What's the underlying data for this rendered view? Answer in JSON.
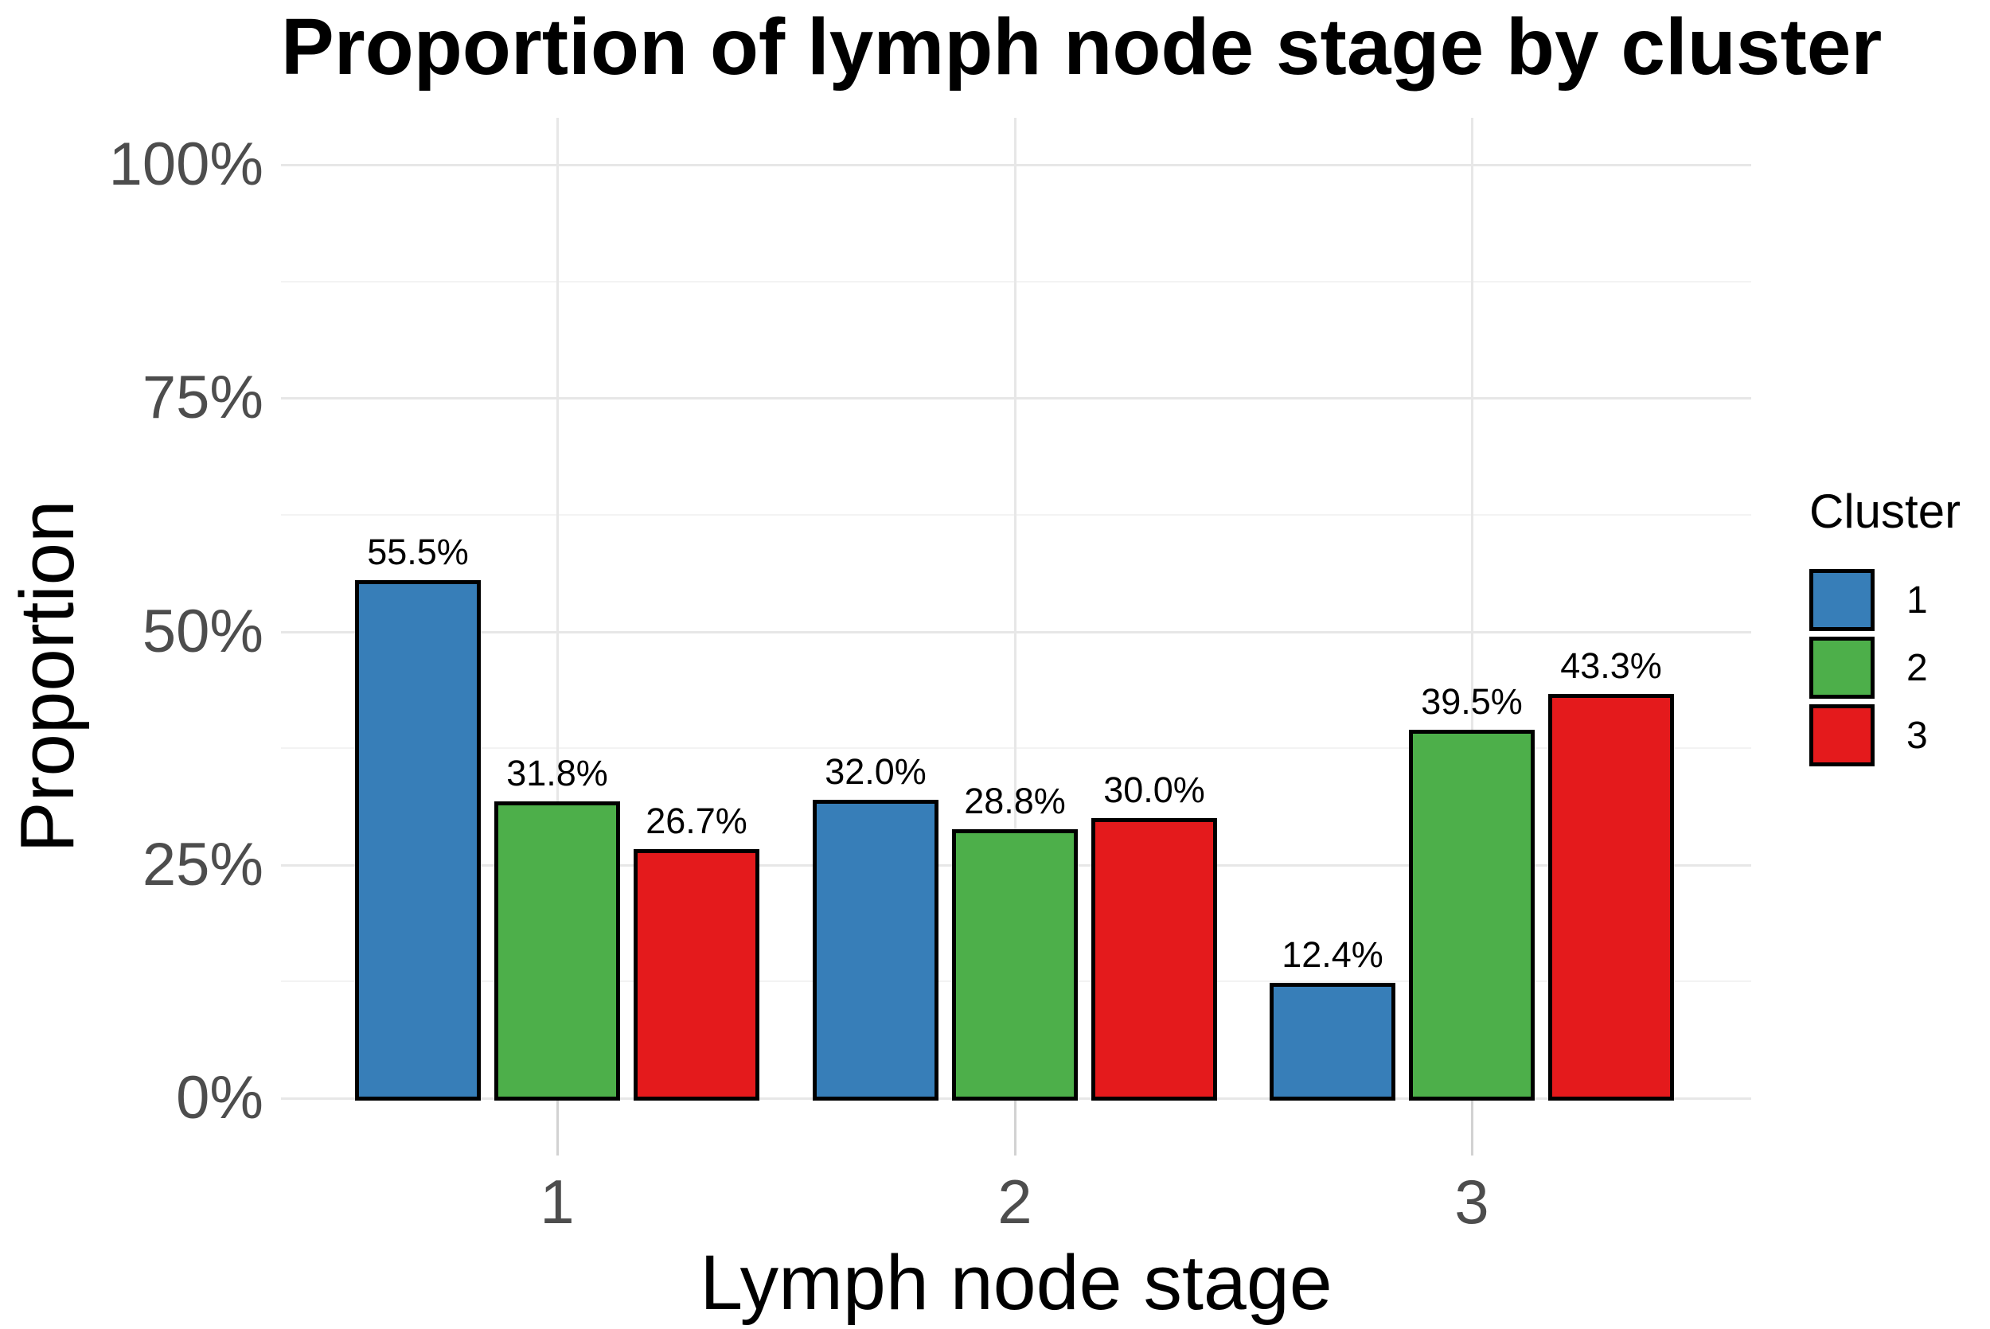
{
  "chart_data": {
    "type": "bar",
    "title": "Proportion of lymph node stage by cluster",
    "xlabel": "Lymph node stage",
    "ylabel": "Proportion",
    "categories": [
      "1",
      "2",
      "3"
    ],
    "series": [
      {
        "name": "1",
        "color": "#377EB8",
        "values": [
          55.5,
          32.0,
          12.4
        ],
        "labels": [
          "55.5%",
          "32.0%",
          "12.4%"
        ]
      },
      {
        "name": "2",
        "color": "#4DAF4A",
        "values": [
          31.8,
          28.8,
          39.5
        ],
        "labels": [
          "31.8%",
          "28.8%",
          "39.5%"
        ]
      },
      {
        "name": "3",
        "color": "#E41A1C",
        "values": [
          26.7,
          30.0,
          43.3
        ],
        "labels": [
          "26.7%",
          "30.0%",
          "43.3%"
        ]
      }
    ],
    "y_ticks": [
      {
        "value": 0,
        "label": "0%"
      },
      {
        "value": 25,
        "label": "25%"
      },
      {
        "value": 50,
        "label": "50%"
      },
      {
        "value": 75,
        "label": "75%"
      },
      {
        "value": 100,
        "label": "100%"
      }
    ],
    "y_minor_ticks": [
      12.5,
      37.5,
      62.5,
      87.5
    ],
    "ylim": [
      0,
      100
    ],
    "grid": true,
    "legend_title": "Cluster",
    "legend_position": "right",
    "bar_outline_color": "#000000"
  }
}
